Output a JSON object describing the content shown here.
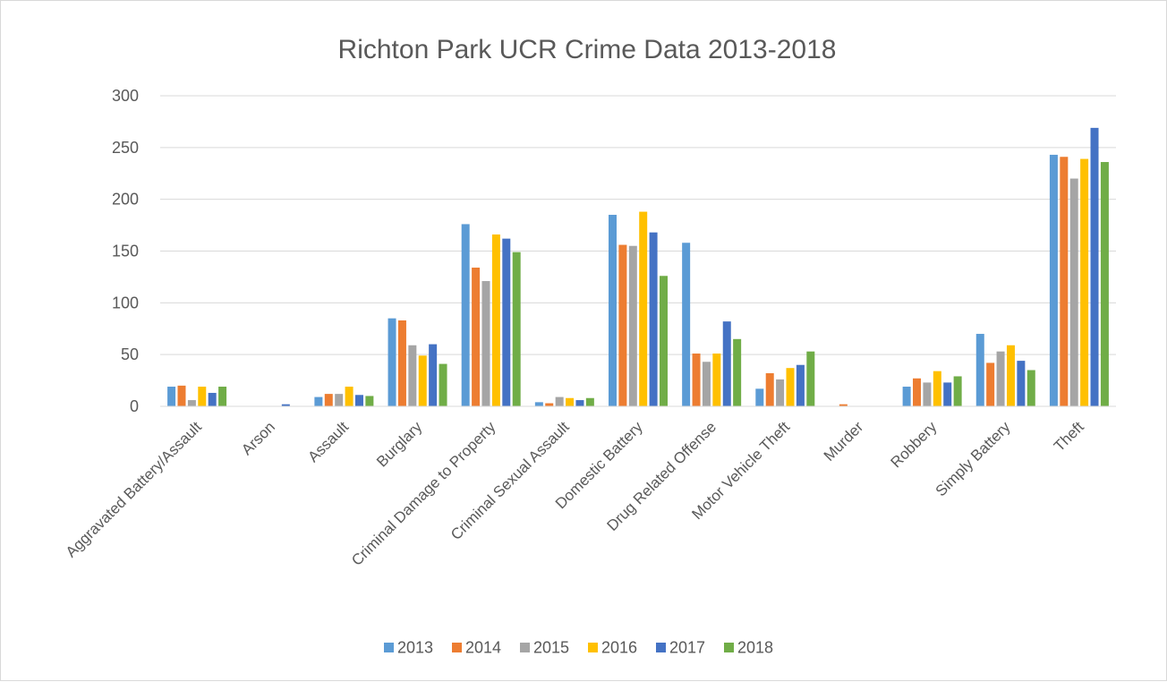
{
  "chart_data": {
    "type": "bar",
    "title": "Richton Park UCR Crime Data 2013-2018",
    "xlabel": "",
    "ylabel": "",
    "ylim": [
      0,
      300
    ],
    "yticks": [
      "0",
      "50",
      "100",
      "150",
      "200",
      "250",
      "300"
    ],
    "grid": true,
    "legend_position": "bottom",
    "categories": [
      "Aggravated Battery/Assault",
      "Arson",
      "Assault",
      "Burglary",
      "Criminal Damage to Property",
      "Criminal Sexual Assault",
      "Domestic Battery",
      "Drug Related Offense",
      "Motor Vehicle Theft",
      "Murder",
      "Robbery",
      "Simply Battery",
      "Theft"
    ],
    "series": [
      {
        "name": "2013",
        "color": "#5b9bd5",
        "values": [
          19,
          0,
          9,
          85,
          176,
          4,
          185,
          158,
          17,
          0,
          19,
          70,
          243
        ]
      },
      {
        "name": "2014",
        "color": "#ed7d31",
        "values": [
          20,
          0,
          12,
          83,
          134,
          3,
          156,
          51,
          32,
          2,
          27,
          42,
          241
        ]
      },
      {
        "name": "2015",
        "color": "#a5a5a5",
        "values": [
          6,
          0,
          12,
          59,
          121,
          9,
          155,
          43,
          26,
          0,
          23,
          53,
          220
        ]
      },
      {
        "name": "2016",
        "color": "#ffc000",
        "values": [
          19,
          0,
          19,
          49,
          166,
          8,
          188,
          51,
          37,
          0,
          34,
          59,
          239
        ]
      },
      {
        "name": "2017",
        "color": "#4472c4",
        "values": [
          13,
          2,
          11,
          60,
          162,
          6,
          168,
          82,
          40,
          0,
          23,
          44,
          269
        ]
      },
      {
        "name": "2018",
        "color": "#70ad47",
        "values": [
          19,
          0,
          10,
          41,
          149,
          8,
          126,
          65,
          53,
          0,
          29,
          35,
          236
        ]
      }
    ]
  }
}
